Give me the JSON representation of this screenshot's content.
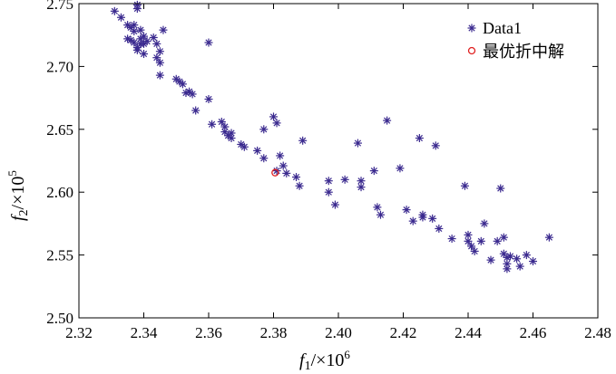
{
  "chart_data": {
    "type": "scatter",
    "xlabel": "f1/×10^6",
    "ylabel": "f2/×10^5",
    "xlim": [
      2.32,
      2.48
    ],
    "ylim": [
      2.5,
      2.75
    ],
    "x_ticks": [
      "2.32",
      "2.34",
      "2.36",
      "2.38",
      "2.40",
      "2.42",
      "2.44",
      "2.46",
      "2.48"
    ],
    "y_ticks": [
      "2.50",
      "2.55",
      "2.60",
      "2.65",
      "2.70",
      "2.75"
    ],
    "grid": false,
    "legend_position": "top-right",
    "series": [
      {
        "name": "Data1",
        "marker": "asterisk",
        "color": "#3b2a8f",
        "points": [
          [
            2.331,
            2.744
          ],
          [
            2.333,
            2.739
          ],
          [
            2.335,
            2.733
          ],
          [
            2.336,
            2.731
          ],
          [
            2.337,
            2.733
          ],
          [
            2.337,
            2.728
          ],
          [
            2.338,
            2.746
          ],
          [
            2.338,
            2.749
          ],
          [
            2.339,
            2.722
          ],
          [
            2.339,
            2.729
          ],
          [
            2.34,
            2.724
          ],
          [
            2.34,
            2.718
          ],
          [
            2.341,
            2.72
          ],
          [
            2.343,
            2.723
          ],
          [
            2.344,
            2.718
          ],
          [
            2.345,
            2.712
          ],
          [
            2.346,
            2.729
          ],
          [
            2.335,
            2.722
          ],
          [
            2.337,
            2.719
          ],
          [
            2.338,
            2.715
          ],
          [
            2.338,
            2.713
          ],
          [
            2.34,
            2.71
          ],
          [
            2.339,
            2.718
          ],
          [
            2.336,
            2.721
          ],
          [
            2.345,
            2.703
          ],
          [
            2.344,
            2.707
          ],
          [
            2.345,
            2.693
          ],
          [
            2.36,
            2.719
          ],
          [
            2.35,
            2.69
          ],
          [
            2.351,
            2.688
          ],
          [
            2.352,
            2.686
          ],
          [
            2.353,
            2.679
          ],
          [
            2.354,
            2.68
          ],
          [
            2.355,
            2.678
          ],
          [
            2.356,
            2.665
          ],
          [
            2.36,
            2.674
          ],
          [
            2.361,
            2.654
          ],
          [
            2.364,
            2.656
          ],
          [
            2.365,
            2.652
          ],
          [
            2.365,
            2.648
          ],
          [
            2.366,
            2.645
          ],
          [
            2.367,
            2.647
          ],
          [
            2.367,
            2.643
          ],
          [
            2.37,
            2.638
          ],
          [
            2.371,
            2.636
          ],
          [
            2.375,
            2.633
          ],
          [
            2.377,
            2.65
          ],
          [
            2.377,
            2.627
          ],
          [
            2.38,
            2.66
          ],
          [
            2.381,
            2.655
          ],
          [
            2.381,
            2.617
          ],
          [
            2.382,
            2.629
          ],
          [
            2.383,
            2.621
          ],
          [
            2.384,
            2.615
          ],
          [
            2.387,
            2.612
          ],
          [
            2.388,
            2.605
          ],
          [
            2.389,
            2.641
          ],
          [
            2.397,
            2.609
          ],
          [
            2.397,
            2.6
          ],
          [
            2.399,
            2.59
          ],
          [
            2.402,
            2.61
          ],
          [
            2.406,
            2.639
          ],
          [
            2.407,
            2.609
          ],
          [
            2.407,
            2.604
          ],
          [
            2.411,
            2.617
          ],
          [
            2.412,
            2.588
          ],
          [
            2.413,
            2.582
          ],
          [
            2.415,
            2.657
          ],
          [
            2.419,
            2.619
          ],
          [
            2.421,
            2.586
          ],
          [
            2.423,
            2.577
          ],
          [
            2.425,
            2.643
          ],
          [
            2.426,
            2.58
          ],
          [
            2.426,
            2.582
          ],
          [
            2.429,
            2.579
          ],
          [
            2.43,
            2.637
          ],
          [
            2.431,
            2.571
          ],
          [
            2.435,
            2.563
          ],
          [
            2.439,
            2.605
          ],
          [
            2.44,
            2.566
          ],
          [
            2.44,
            2.561
          ],
          [
            2.441,
            2.557
          ],
          [
            2.442,
            2.553
          ],
          [
            2.444,
            2.561
          ],
          [
            2.445,
            2.575
          ],
          [
            2.447,
            2.546
          ],
          [
            2.449,
            2.561
          ],
          [
            2.45,
            2.603
          ],
          [
            2.451,
            2.564
          ],
          [
            2.451,
            2.551
          ],
          [
            2.452,
            2.548
          ],
          [
            2.452,
            2.543
          ],
          [
            2.452,
            2.539
          ],
          [
            2.453,
            2.549
          ],
          [
            2.455,
            2.547
          ],
          [
            2.456,
            2.541
          ],
          [
            2.458,
            2.55
          ],
          [
            2.46,
            2.545
          ],
          [
            2.465,
            2.564
          ]
        ]
      },
      {
        "name": "最优折中解",
        "marker": "circle",
        "color": "#e02020",
        "points": [
          [
            2.3805,
            2.6155
          ]
        ]
      }
    ]
  }
}
